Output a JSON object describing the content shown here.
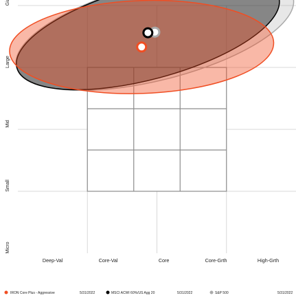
{
  "chart_data": {
    "type": "scatter",
    "title": "",
    "x_axis": {
      "ticks": [
        "Deep-Val",
        "Core-Val",
        "Core",
        "Core-Grth",
        "High-Grth"
      ]
    },
    "y_axis": {
      "ticks": [
        "Micro",
        "Small",
        "Mid",
        "Large",
        "Giant"
      ]
    },
    "xlim": [
      0,
      4
    ],
    "ylim": [
      0,
      4
    ],
    "grid": true,
    "style_box": {
      "x": [
        1,
        3
      ],
      "y": [
        1,
        3
      ]
    },
    "style_box_split": {
      "x": [
        2
      ],
      "y": [
        2
      ]
    },
    "series": [
      {
        "name": "IRON Core Plus - Aggressive",
        "date": "5/31/2022",
        "color": "#f04e23",
        "fill": "#f04e23",
        "center": [
          1.78,
          3.33
        ],
        "ellipse_radius": [
          1.9,
          0.75
        ],
        "ellipse_rotation_deg": -2
      },
      {
        "name": "MSCI ACWI 60%/US Agg 20",
        "date": "5/31/2022",
        "color": "#000000",
        "fill": "#000000",
        "center": [
          1.87,
          3.56
        ],
        "ellipse_radius": [
          1.95,
          0.75
        ],
        "ellipse_rotation_deg": -15
      },
      {
        "name": "S&P 500",
        "date": "5/31/2022",
        "color": "#aaaaaa",
        "fill": "#aaaaaa",
        "center": [
          1.97,
          3.57
        ],
        "ellipse_radius": [
          2.05,
          0.78
        ],
        "ellipse_rotation_deg": -14
      }
    ]
  }
}
